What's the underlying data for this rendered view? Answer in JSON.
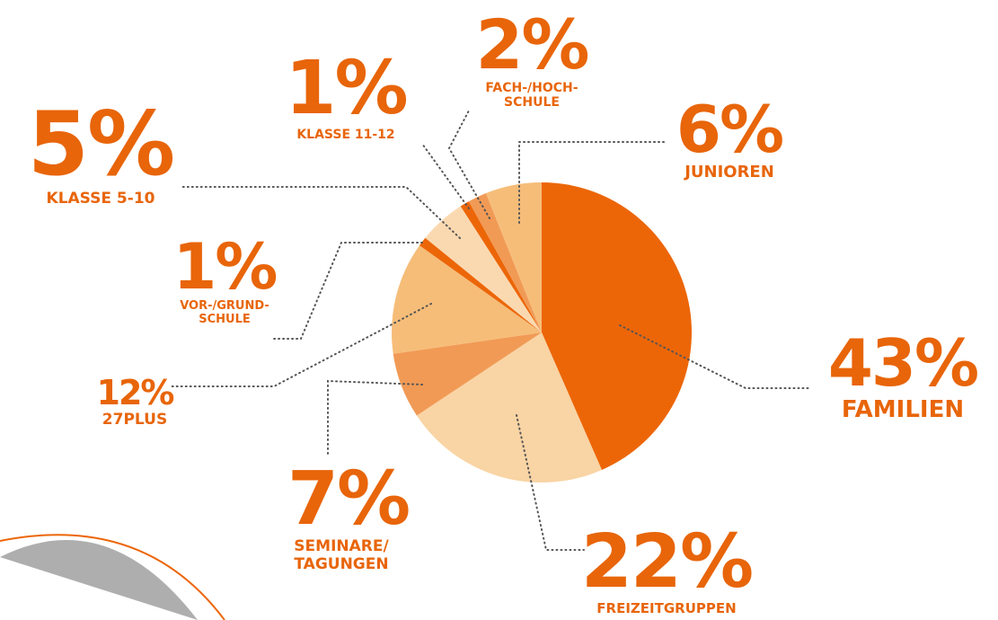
{
  "chart_data": {
    "type": "pie",
    "categories": [
      "FAMILIEN",
      "FREIZEITGRUPPEN",
      "SEMINARE/ TAGUNGEN",
      "27PLUS",
      "VOR-/GRUND- SCHULE",
      "KLASSE 5-10",
      "KLASSE 11-12",
      "FACH-/HOCH- SCHULE",
      "JUNIOREN"
    ],
    "values": [
      43,
      22,
      7,
      12,
      1,
      5,
      1,
      2,
      6
    ],
    "value_labels": [
      "43%",
      "22%",
      "7%",
      "12%",
      "1%",
      "5%",
      "1%",
      "2%",
      "6%"
    ],
    "colors": [
      "#ec6608",
      "#f9d4a4",
      "#f19a55",
      "#f6bd79",
      "#ec6608",
      "#fbd9b0",
      "#ec6608",
      "#f19a55",
      "#f6bd79"
    ]
  }
}
